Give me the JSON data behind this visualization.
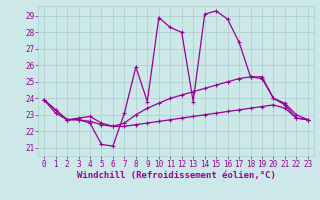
{
  "background_color": "#cce8e8",
  "grid_color": "#aacccc",
  "line_color": "#990099",
  "xlabel": "Windchill (Refroidissement éolien,°C)",
  "xlabel_fontsize": 6.5,
  "yticks": [
    21,
    22,
    23,
    24,
    25,
    26,
    27,
    28,
    29
  ],
  "xticks": [
    0,
    1,
    2,
    3,
    4,
    5,
    6,
    7,
    8,
    9,
    10,
    11,
    12,
    13,
    14,
    15,
    16,
    17,
    18,
    19,
    20,
    21,
    22,
    23
  ],
  "ylim": [
    20.5,
    29.6
  ],
  "xlim": [
    -0.5,
    23.5
  ],
  "series": [
    {
      "x": [
        0,
        1,
        2,
        3,
        4,
        5,
        6,
        7,
        8,
        9,
        10,
        11,
        12,
        13,
        14,
        15,
        16,
        17,
        18,
        19,
        20,
        21,
        22,
        23
      ],
      "y": [
        23.9,
        23.3,
        22.7,
        22.7,
        22.5,
        21.2,
        21.1,
        23.1,
        25.9,
        23.8,
        28.9,
        28.3,
        28.0,
        23.8,
        29.1,
        29.3,
        28.8,
        27.4,
        25.3,
        25.2,
        24.0,
        23.6,
        22.8,
        22.7
      ]
    },
    {
      "x": [
        0,
        1,
        2,
        3,
        4,
        5,
        6,
        7,
        8,
        9,
        10,
        11,
        12,
        13,
        14,
        15,
        16,
        17,
        18,
        19,
        20,
        21,
        22,
        23
      ],
      "y": [
        23.9,
        23.3,
        22.7,
        22.8,
        22.9,
        22.5,
        22.3,
        22.5,
        23.0,
        23.4,
        23.7,
        24.0,
        24.2,
        24.4,
        24.6,
        24.8,
        25.0,
        25.2,
        25.3,
        25.3,
        24.0,
        23.7,
        23.0,
        22.7
      ]
    },
    {
      "x": [
        0,
        1,
        2,
        3,
        4,
        5,
        6,
        7,
        8,
        9,
        10,
        11,
        12,
        13,
        14,
        15,
        16,
        17,
        18,
        19,
        20,
        21,
        22,
        23
      ],
      "y": [
        23.9,
        23.1,
        22.7,
        22.7,
        22.6,
        22.4,
        22.3,
        22.3,
        22.4,
        22.5,
        22.6,
        22.7,
        22.8,
        22.9,
        23.0,
        23.1,
        23.2,
        23.3,
        23.4,
        23.5,
        23.6,
        23.4,
        22.8,
        22.7
      ]
    }
  ]
}
